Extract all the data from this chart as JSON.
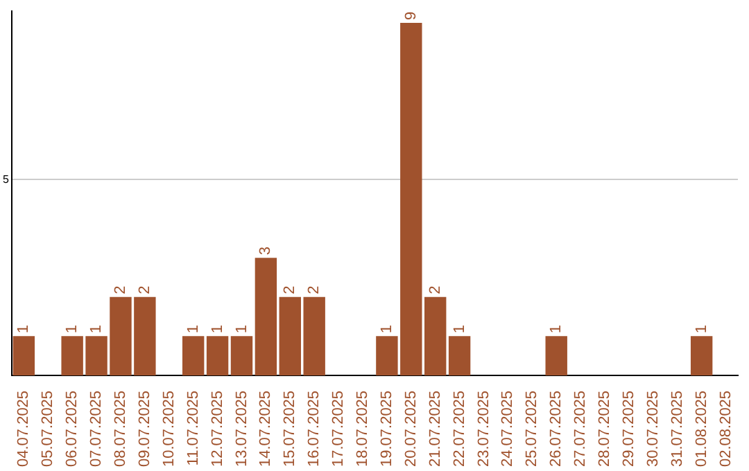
{
  "chart_data": {
    "type": "bar",
    "categories": [
      "04.07.2025",
      "05.07.2025",
      "06.07.2025",
      "07.07.2025",
      "08.07.2025",
      "09.07.2025",
      "10.07.2025",
      "11.07.2025",
      "12.07.2025",
      "13.07.2025",
      "14.07.2025",
      "15.07.2025",
      "16.07.2025",
      "17.07.2025",
      "18.07.2025",
      "19.07.2025",
      "20.07.2025",
      "21.07.2025",
      "22.07.2025",
      "23.07.2025",
      "24.07.2025",
      "25.07.2025",
      "26.07.2025",
      "27.07.2025",
      "28.07.2025",
      "29.07.2025",
      "30.07.2025",
      "31.07.2025",
      "01.08.2025",
      "02.08.2025"
    ],
    "values": [
      1,
      0,
      1,
      1,
      2,
      2,
      0,
      1,
      1,
      1,
      3,
      2,
      2,
      0,
      0,
      1,
      9,
      2,
      1,
      0,
      0,
      0,
      1,
      0,
      0,
      0,
      0,
      0,
      1,
      0
    ],
    "value_labels": [
      "1",
      null,
      "1",
      "1",
      "2",
      "2",
      null,
      "1",
      "1",
      "1",
      "3",
      "2",
      "2",
      null,
      null,
      "1",
      "9",
      "2",
      "1",
      null,
      null,
      null,
      "1",
      null,
      null,
      null,
      null,
      null,
      "1",
      null
    ],
    "color": "#a0522d",
    "ylim": [
      0,
      9.3
    ],
    "yticks": [
      5
    ],
    "grid": "y",
    "legend": false
  }
}
